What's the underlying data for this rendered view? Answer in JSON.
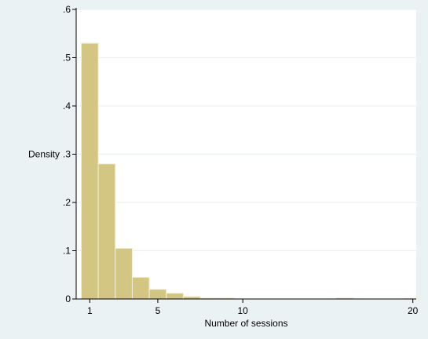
{
  "chart_data": {
    "type": "bar",
    "subtype": "histogram",
    "xlabel": "Number of sessions",
    "ylabel": "Density",
    "xlim": [
      0.2,
      20.2
    ],
    "ylim": [
      0,
      0.6
    ],
    "x_ticks": [
      {
        "value": 1,
        "label": "1"
      },
      {
        "value": 5,
        "label": "5"
      },
      {
        "value": 10,
        "label": "10"
      },
      {
        "value": 20,
        "label": "20"
      }
    ],
    "y_ticks": [
      {
        "value": 0,
        "label": "0"
      },
      {
        "value": 0.1,
        "label": ".1"
      },
      {
        "value": 0.2,
        "label": ".2"
      },
      {
        "value": 0.3,
        "label": ".3"
      },
      {
        "value": 0.4,
        "label": ".4"
      },
      {
        "value": 0.5,
        "label": ".5"
      },
      {
        "value": 0.6,
        "label": ".6"
      }
    ],
    "bins": [
      {
        "x0": 0.5,
        "x1": 1.5,
        "density": 0.53
      },
      {
        "x0": 1.5,
        "x1": 2.5,
        "density": 0.28
      },
      {
        "x0": 2.5,
        "x1": 3.5,
        "density": 0.105
      },
      {
        "x0": 3.5,
        "x1": 4.5,
        "density": 0.045
      },
      {
        "x0": 4.5,
        "x1": 5.5,
        "density": 0.02
      },
      {
        "x0": 5.5,
        "x1": 6.5,
        "density": 0.012
      },
      {
        "x0": 6.5,
        "x1": 7.5,
        "density": 0.005
      },
      {
        "x0": 7.5,
        "x1": 8.5,
        "density": 0.002
      },
      {
        "x0": 8.5,
        "x1": 9.5,
        "density": 0.002
      },
      {
        "x0": 15.5,
        "x1": 16.5,
        "density": 0.002
      },
      {
        "x0": 19.5,
        "x1": 20.5,
        "density": 0.001
      }
    ],
    "grid": "horizontal",
    "legend": "none",
    "colors": {
      "outer_background": "#eaf2f3",
      "plot_background": "#ffffff",
      "gridline": "#eaf2f3",
      "bar_fill": "#d3c683",
      "bar_stroke": "#f2efd9",
      "axis": "#000000"
    }
  }
}
